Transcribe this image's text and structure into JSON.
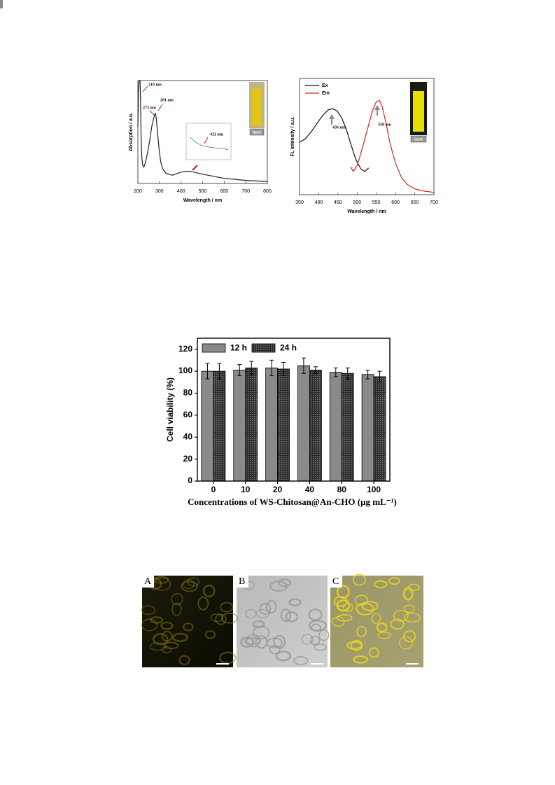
{
  "chart_data": [
    {
      "type": "line",
      "xlabel": "Wavelength / nm",
      "ylabel": "Absorption / a.u.",
      "xlim": [
        200,
        800
      ],
      "xticks": [
        200,
        300,
        400,
        500,
        600,
        700,
        800
      ],
      "ylim": [
        0,
        1
      ],
      "series": [
        {
          "color": "#222222",
          "x": [
            200,
            203,
            206,
            208,
            210,
            212,
            215,
            218,
            222,
            228,
            235,
            245,
            255,
            265,
            273,
            278,
            281,
            285,
            290,
            297,
            305,
            315,
            330,
            360,
            400,
            432,
            460,
            500,
            550,
            600,
            700,
            800
          ],
          "values": [
            0.55,
            0.9,
            1.0,
            1.0,
            1.0,
            0.85,
            0.45,
            0.25,
            0.18,
            0.16,
            0.2,
            0.3,
            0.42,
            0.56,
            0.63,
            0.67,
            0.68,
            0.64,
            0.52,
            0.36,
            0.22,
            0.14,
            0.1,
            0.08,
            0.11,
            0.12,
            0.11,
            0.09,
            0.07,
            0.05,
            0.03,
            0.02
          ]
        }
      ],
      "annotations": [
        "210 nm",
        "273 nm",
        "281 nm",
        "432 nm",
        "inset"
      ]
    },
    {
      "type": "line",
      "xlabel": "Wavelength / nm",
      "ylabel": "FL intensity / a.u.",
      "xlim": [
        350,
        700
      ],
      "xticks": [
        350,
        400,
        450,
        500,
        550,
        600,
        650,
        700
      ],
      "ylim": [
        0,
        1
      ],
      "legend": "upper left",
      "series": [
        {
          "name": "Ex",
          "color": "#111111",
          "x": [
            350,
            365,
            380,
            395,
            410,
            425,
            436,
            448,
            460,
            472,
            485,
            497,
            510,
            520,
            530
          ],
          "values": [
            0.45,
            0.48,
            0.54,
            0.61,
            0.68,
            0.73,
            0.74,
            0.72,
            0.66,
            0.56,
            0.42,
            0.3,
            0.22,
            0.2,
            0.23
          ]
        },
        {
          "name": "Em",
          "color": "#e02020",
          "x": [
            483,
            490,
            500,
            510,
            520,
            530,
            540,
            550,
            558,
            565,
            575,
            585,
            600,
            615,
            630,
            650,
            675,
            700
          ],
          "values": [
            0.24,
            0.2,
            0.25,
            0.36,
            0.48,
            0.6,
            0.72,
            0.8,
            0.81,
            0.76,
            0.62,
            0.45,
            0.27,
            0.15,
            0.09,
            0.05,
            0.03,
            0.02
          ]
        }
      ],
      "annotations": [
        "436 nm",
        "558 nm",
        "inset"
      ]
    },
    {
      "type": "bar",
      "ylabel": "Cell viability (%)",
      "xlabel": "Concentrations of WS-Chitosan@An-CHO (μg mL⁻¹)",
      "categories": [
        "0",
        "10",
        "20",
        "40",
        "80",
        "100"
      ],
      "ylim": [
        0,
        130
      ],
      "yticks": [
        0,
        20,
        40,
        60,
        80,
        100,
        120
      ],
      "legend": "upper left",
      "series": [
        {
          "name": "12 h",
          "color": "#8a8a8a",
          "values": [
            100,
            101,
            103,
            105,
            99,
            97
          ],
          "errors": [
            7,
            5,
            7,
            7,
            4,
            4
          ]
        },
        {
          "name": "24 h",
          "color": "#2b2b2b",
          "values": [
            100,
            103,
            102,
            101,
            98,
            95
          ],
          "errors": [
            7,
            6,
            6,
            3,
            5,
            5
          ]
        }
      ]
    }
  ],
  "image_panels": {
    "labels": [
      "A",
      "B",
      "C"
    ]
  }
}
